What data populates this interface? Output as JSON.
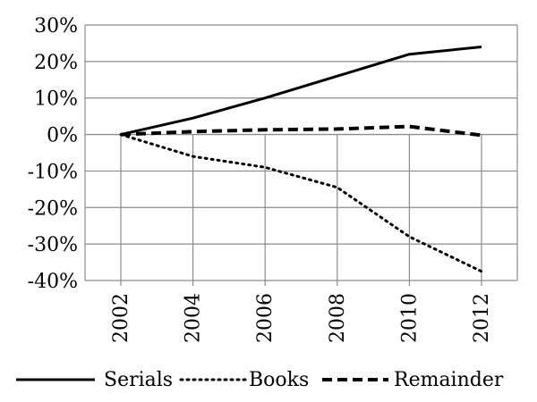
{
  "chart_data": {
    "type": "line",
    "title": "",
    "xlabel": "",
    "ylabel": "",
    "x": [
      2002,
      2004,
      2006,
      2008,
      2010,
      2012
    ],
    "x_tick_labels": [
      "2002",
      "2004",
      "2006",
      "2008",
      "2010",
      "2012"
    ],
    "ylim": [
      -40,
      30
    ],
    "y_unit": "%",
    "y_ticks": [
      30,
      20,
      10,
      0,
      -10,
      -20,
      -30,
      -40
    ],
    "y_tick_labels": [
      "30%",
      "20%",
      "10%",
      "0%",
      "-10%",
      "-20%",
      "-30%",
      "-40%"
    ],
    "grid": "horizontal",
    "legend_placement": "bottom",
    "series": [
      {
        "name": "Serials",
        "style": "solid",
        "color": "#000000",
        "values": [
          0,
          4.5,
          10,
          16,
          22,
          24
        ]
      },
      {
        "name": "Books",
        "style": "dotted",
        "color": "#000000",
        "values": [
          0,
          -6,
          -9,
          -14.5,
          -28,
          -37.5
        ]
      },
      {
        "name": "Remainder",
        "style": "dashed",
        "color": "#000000",
        "values": [
          0,
          0.8,
          1.3,
          1.5,
          2.2,
          -0.2
        ]
      }
    ]
  }
}
